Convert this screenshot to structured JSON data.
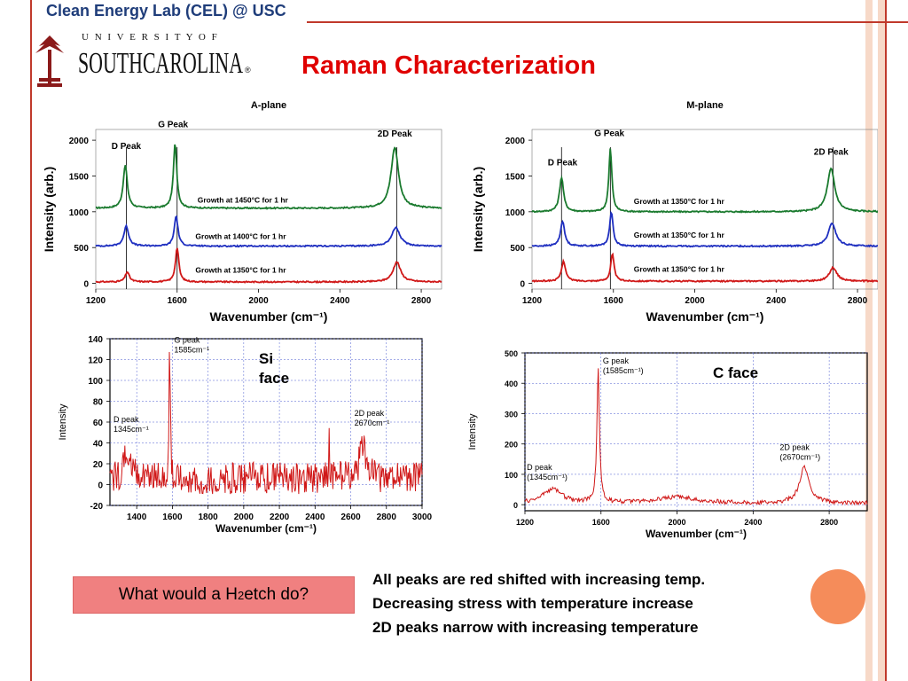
{
  "header": {
    "lab": "Clean Energy Lab (CEL) @ USC",
    "university_top": "U N I V E R S I T Y   O F",
    "university_name": "SOUTHCAROLINA",
    "registered": "®",
    "title": "Raman Characterization"
  },
  "labels": {
    "si_face": "Si face",
    "c_face": "C face"
  },
  "question": {
    "prefix": "What would a H",
    "subscript": "2",
    "suffix": " etch do?"
  },
  "findings": [
    "All peaks are red shifted with increasing temp.",
    "Decreasing stress with temperature increase",
    "2D peaks narrow with increasing temperature"
  ],
  "colors": {
    "accent": "#c0392b",
    "title_red": "#e00000",
    "lab_blue": "#1f3d7a",
    "green": "#1a7a2e",
    "blue": "#1f2fc0",
    "red": "#d01818",
    "question_box": "#f08080",
    "circle": "#f58c5a",
    "deco_stripe": "#f7d9c8",
    "logo_red": "#8b1a1a"
  },
  "chart_data": [
    {
      "type": "line",
      "title": "A-plane",
      "xlabel": "Wavenumber (cm⁻¹)",
      "ylabel": "Intensity (arb.)",
      "xlim": [
        1200,
        2900
      ],
      "ylim": [
        -80,
        2150
      ],
      "xticks": [
        1200,
        1600,
        2000,
        2400,
        2800
      ],
      "yticks": [
        0,
        500,
        1000,
        1500,
        2000
      ],
      "peak_labels": [
        {
          "text": "D Peak",
          "x": 1350,
          "y": 1880
        },
        {
          "text": "G Peak",
          "x": 1580,
          "y": 2180
        },
        {
          "text": "2D Peak",
          "x": 2670,
          "y": 2050
        }
      ],
      "peak_lines": [
        1350,
        1600,
        2680
      ],
      "series": [
        {
          "name": "Growth at 1450°C for 1 hr",
          "color": "green",
          "baseline": 1050,
          "peaks": [
            [
              1345,
              600,
              12
            ],
            [
              1590,
              900,
              10
            ],
            [
              2670,
              850,
              22
            ]
          ],
          "label_x": 1700,
          "label_y": 1130
        },
        {
          "name": "Growth at 1400°C for 1 hr",
          "color": "blue",
          "baseline": 520,
          "peaks": [
            [
              1350,
              280,
              14
            ],
            [
              1595,
              420,
              11
            ],
            [
              2675,
              260,
              24
            ]
          ],
          "label_x": 1690,
          "label_y": 620
        },
        {
          "name": "Growth at 1350°C for 1 hr",
          "color": "red",
          "baseline": 20,
          "peaks": [
            [
              1355,
              140,
              12
            ],
            [
              1600,
              480,
              10
            ],
            [
              2680,
              280,
              22
            ]
          ],
          "label_x": 1690,
          "label_y": 150
        }
      ]
    },
    {
      "type": "line",
      "title": "M-plane",
      "xlabel": "Wavenumber (cm⁻¹)",
      "ylabel": "Intensity (arb.)",
      "xlim": [
        1200,
        2900
      ],
      "ylim": [
        -80,
        2150
      ],
      "xticks": [
        1200,
        1600,
        2000,
        2400,
        2800
      ],
      "yticks": [
        0,
        500,
        1000,
        1500,
        2000
      ],
      "peak_labels": [
        {
          "text": "D Peak",
          "x": 1350,
          "y": 1650
        },
        {
          "text": "G Peak",
          "x": 1580,
          "y": 2060
        },
        {
          "text": "2D Peak",
          "x": 2670,
          "y": 1800
        }
      ],
      "peak_lines": [
        1345,
        1585,
        2680
      ],
      "series": [
        {
          "name": "Growth at 1350°C for 1 hr",
          "color": "green",
          "baseline": 1000,
          "peaks": [
            [
              1345,
              480,
              12
            ],
            [
              1585,
              880,
              9
            ],
            [
              2670,
              600,
              22
            ]
          ],
          "label_x": 1700,
          "label_y": 1110
        },
        {
          "name": "Growth at 1350°C for 1 hr",
          "color": "blue",
          "baseline": 520,
          "peaks": [
            [
              1350,
              350,
              12
            ],
            [
              1590,
              480,
              10
            ],
            [
              2675,
              320,
              22
            ]
          ],
          "label_x": 1700,
          "label_y": 640
        },
        {
          "name": "Growth at 1350°C for 1 hr",
          "color": "red",
          "baseline": 30,
          "peaks": [
            [
              1355,
              280,
              12
            ],
            [
              1595,
              380,
              10
            ],
            [
              2680,
              190,
              22
            ]
          ],
          "label_x": 1700,
          "label_y": 160
        }
      ]
    },
    {
      "type": "line",
      "title": "",
      "xlabel": "Wavenumber (cm⁻¹)",
      "ylabel": "Intensity",
      "xlim": [
        1250,
        3000
      ],
      "ylim": [
        -20,
        140
      ],
      "xticks": [
        1400,
        1600,
        1800,
        2000,
        2200,
        2400,
        2600,
        2800,
        3000
      ],
      "yticks": [
        -20,
        0,
        20,
        40,
        60,
        80,
        100,
        120,
        140
      ],
      "annotations": [
        {
          "lines": [
            "G peak",
            "1585cm⁻¹"
          ],
          "x": 1610,
          "y": 136
        },
        {
          "lines": [
            "D peak",
            "1345cm⁻¹"
          ],
          "x": 1270,
          "y": 60
        },
        {
          "lines": [
            "2D peak",
            "2670cm⁻¹"
          ],
          "x": 2620,
          "y": 66
        }
      ],
      "series": [
        {
          "name": "Si face",
          "color": "red",
          "baseline": 6,
          "noise": 22,
          "peaks": [
            [
              1345,
              28,
              18
            ],
            [
              1585,
              126,
              4
            ],
            [
              2670,
              30,
              25
            ],
            [
              2480,
              50,
              2
            ]
          ]
        }
      ]
    },
    {
      "type": "line",
      "title": "",
      "xlabel": "Wavenumber (cm⁻¹)",
      "ylabel": "Intensity",
      "xlim": [
        1200,
        3000
      ],
      "ylim": [
        -20,
        500
      ],
      "xticks": [
        1200,
        1600,
        2000,
        2400,
        2800
      ],
      "yticks": [
        0,
        100,
        200,
        300,
        400,
        500
      ],
      "annotations": [
        {
          "lines": [
            "G peak",
            "(1585cm⁻¹)"
          ],
          "x": 1610,
          "y": 465
        },
        {
          "lines": [
            "D peak",
            "(1345cm⁻¹)"
          ],
          "x": 1210,
          "y": 115
        },
        {
          "lines": [
            "2D peak",
            "(2670cm⁻¹)"
          ],
          "x": 2540,
          "y": 180
        }
      ],
      "series": [
        {
          "name": "C face",
          "color": "red",
          "baseline": 5,
          "noise": 10,
          "peaks": [
            [
              1345,
              45,
              60
            ],
            [
              1585,
              440,
              8
            ],
            [
              2670,
              120,
              30
            ],
            [
              2000,
              20,
              120
            ]
          ]
        }
      ]
    }
  ]
}
